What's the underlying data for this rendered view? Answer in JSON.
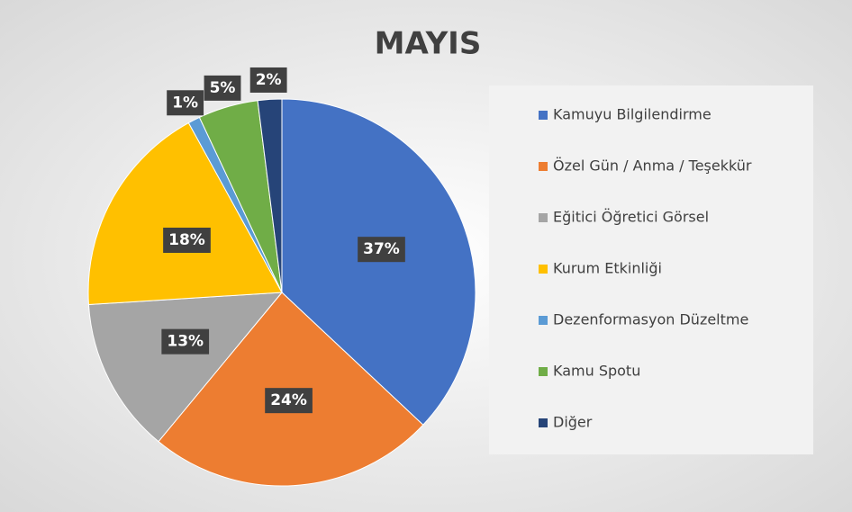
{
  "chart_data": {
    "type": "pie",
    "title": "MAYIS",
    "categories": [
      "Kamuyu Bilgilendirme",
      "Özel Gün / Anma / Teşekkür",
      "Eğitici Öğretici Görsel",
      "Kurum Etkinliği",
      "Dezenformasyon Düzeltme",
      "Kamu Spotu",
      "Diğer"
    ],
    "values": [
      37,
      24,
      13,
      18,
      1,
      5,
      2
    ],
    "value_labels": [
      "37%",
      "24%",
      "13%",
      "18%",
      "1%",
      "5%",
      "2%"
    ],
    "colors": [
      "#4472c4",
      "#ed7d31",
      "#a5a5a5",
      "#ffc000",
      "#5b9bd5",
      "#70ad47",
      "#264478"
    ],
    "legend": "right"
  }
}
